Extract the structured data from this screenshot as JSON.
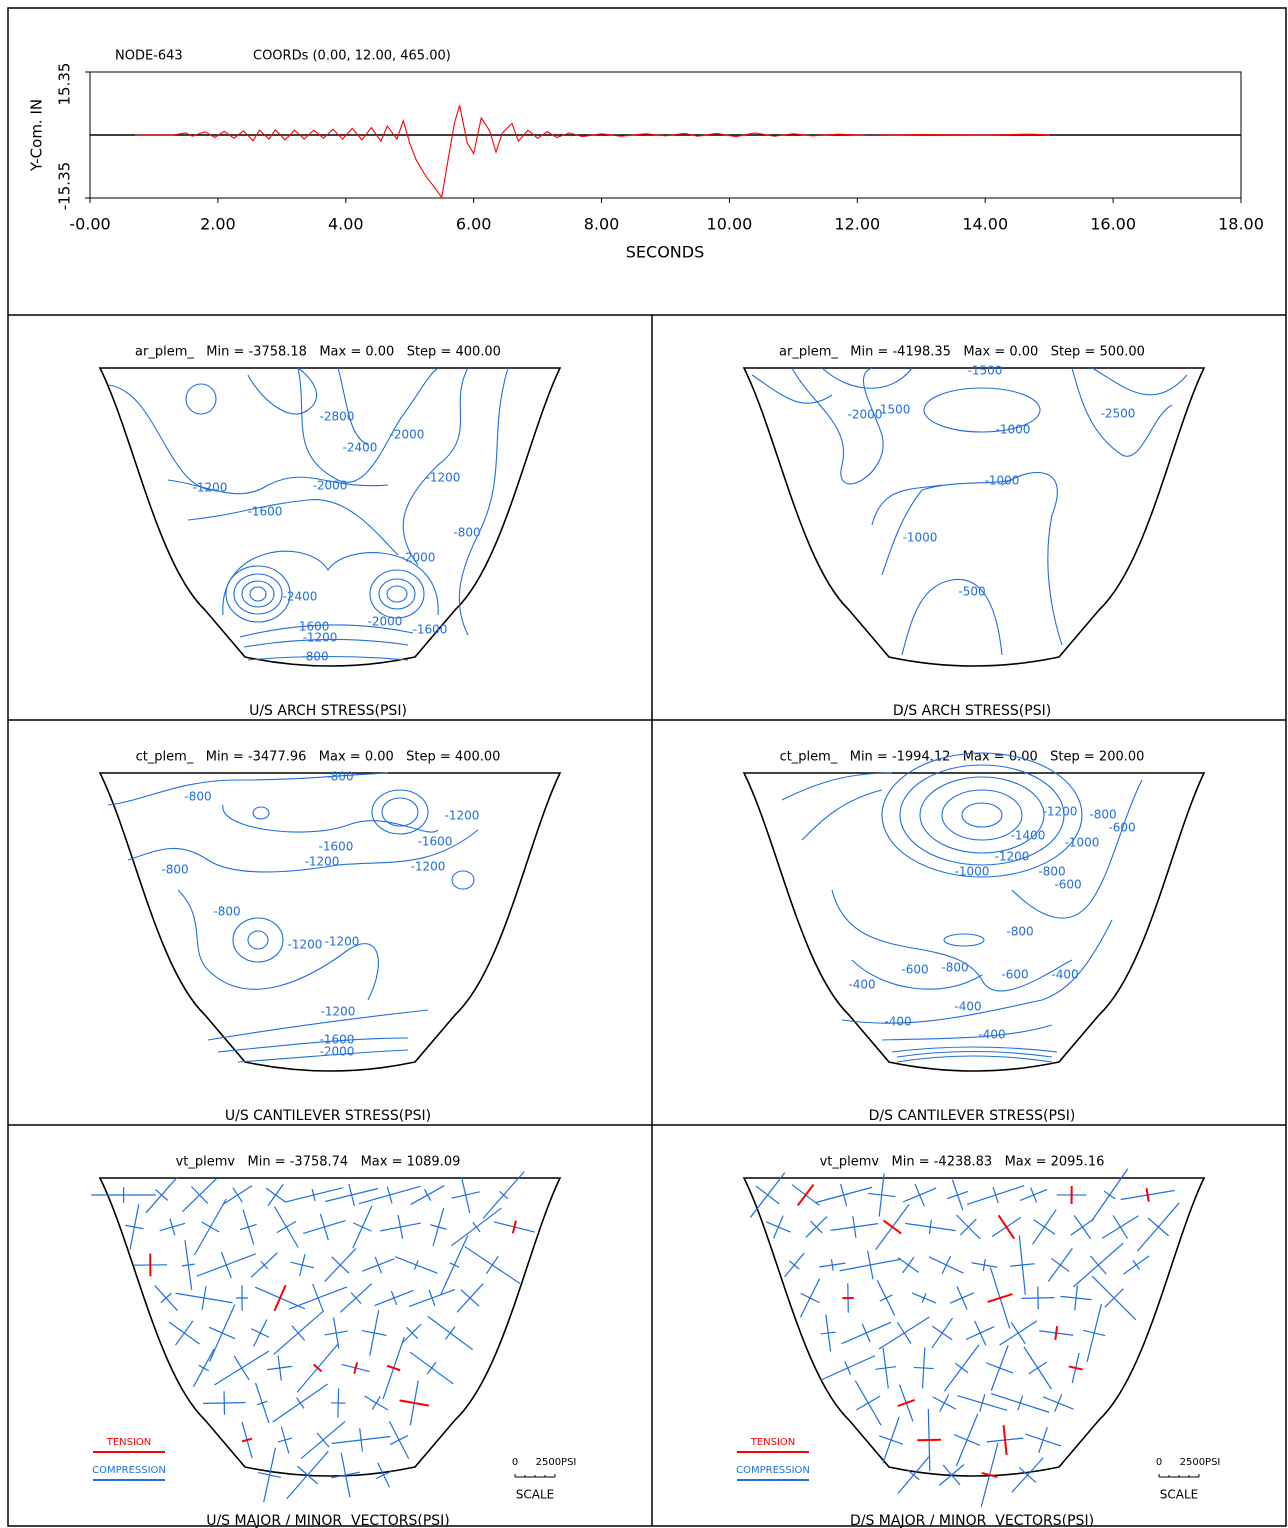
{
  "chart_data": {
    "type": "line",
    "title": "NODE-643",
    "subtitle": "COORDs (0.00, 12.00, 465.00)",
    "x_label": "SECONDS",
    "y_label": "Y-Com. IN",
    "x": [
      0.7,
      1.3,
      1.5,
      1.6,
      1.8,
      1.95,
      2.1,
      2.25,
      2.4,
      2.55,
      2.65,
      2.8,
      2.9,
      3.05,
      3.2,
      3.35,
      3.5,
      3.65,
      3.8,
      3.95,
      4.1,
      4.25,
      4.4,
      4.55,
      4.65,
      4.8,
      4.9,
      5.0,
      5.1,
      5.25,
      5.4,
      5.5,
      5.6,
      5.7,
      5.78,
      5.9,
      6.0,
      6.12,
      6.25,
      6.35,
      6.45,
      6.6,
      6.7,
      6.85,
      7.0,
      7.15,
      7.3,
      7.5,
      7.7,
      8.0,
      8.3,
      8.7,
      9.0,
      9.3,
      9.5,
      9.8,
      10.1,
      10.4,
      10.7,
      11.0,
      11.3,
      11.7,
      12.2,
      13.0,
      14.0,
      14.7,
      14.9,
      15.0
    ],
    "series": [
      {
        "name": "Y-Com.",
        "color": "#ff0000",
        "values": [
          0,
          0,
          0.5,
          -0.3,
          0.8,
          -0.6,
          0.9,
          -0.8,
          1.0,
          -1.4,
          1.2,
          -1.0,
          1.3,
          -1.2,
          1.2,
          -1.0,
          1.2,
          -0.8,
          1.4,
          -1.0,
          1.6,
          -1.2,
          1.8,
          -1.5,
          2.2,
          -1.0,
          3.5,
          -2.0,
          -6,
          -10,
          -13,
          -15.2,
          -6,
          3,
          7.2,
          -2,
          -4.5,
          4.2,
          1,
          -4.2,
          0.5,
          2.8,
          -1.5,
          1.2,
          -0.8,
          0.8,
          -0.6,
          0.5,
          -0.4,
          0.3,
          -0.3,
          0.3,
          -0.2,
          0.4,
          -0.3,
          0.4,
          -0.4,
          0.5,
          -0.3,
          0.3,
          -0.2,
          0.2,
          -0.1,
          0.1,
          0,
          0.2,
          0.1,
          0
        ]
      }
    ],
    "xlim": [
      0,
      18
    ],
    "ylim": [
      -15.35,
      15.35
    ],
    "xticks": [
      {
        "value": 0,
        "label": "-0.00"
      },
      {
        "value": 2,
        "label": "2.00"
      },
      {
        "value": 4,
        "label": "4.00"
      },
      {
        "value": 6,
        "label": "6.00"
      },
      {
        "value": 8,
        "label": "8.00"
      },
      {
        "value": 10,
        "label": "10.00"
      },
      {
        "value": 12,
        "label": "12.00"
      },
      {
        "value": 14,
        "label": "14.00"
      },
      {
        "value": 16,
        "label": "16.00"
      },
      {
        "value": 18,
        "label": "18.00"
      }
    ],
    "yticks": [
      -15.35,
      15.35
    ]
  },
  "panels": [
    {
      "header": "ar_plem_   Min = -3758.18   Max = 0.00   Step = 400.00",
      "caption": "U/S ARCH STRESS(PSI)",
      "contour_labels": [
        "-2800",
        "-2400",
        "-2000",
        "-1200",
        "-2000",
        "-1200",
        "-1600",
        "-800",
        "-2000",
        "-2400",
        "-2000",
        "-1600",
        "-1600",
        "-1200",
        "-800"
      ]
    },
    {
      "header": "ar_plem_   Min = -4198.35   Max = 0.00   Step = 500.00",
      "caption": "D/S ARCH STRESS(PSI)",
      "contour_labels": [
        "-1500",
        "-2000",
        "-1500",
        "-2500",
        "-1000",
        "-1000",
        "-1000",
        "-500"
      ]
    },
    {
      "header": "ct_plem_   Min = -3477.96   Max = 0.00   Step = 400.00",
      "caption": "U/S CANTILEVER STRESS(PSI)",
      "contour_labels": [
        "-800",
        "-800",
        "-1200",
        "-1600",
        "-1600",
        "-1200",
        "-1200",
        "-800",
        "-800",
        "-1200",
        "-1200",
        "-1200",
        "-1600",
        "-2000"
      ]
    },
    {
      "header": "ct_plem_   Min = -1994.12   Max = 0.00   Step = 200.00",
      "caption": "D/S CANTILEVER STRESS(PSI)",
      "contour_labels": [
        "-1200",
        "-800",
        "-600",
        "-1400",
        "-1000",
        "-1200",
        "-1000",
        "-800",
        "-600",
        "-800",
        "-800",
        "-600",
        "-600",
        "-400",
        "-400",
        "-400",
        "-400",
        "-400"
      ]
    },
    {
      "header": "vt_plemv   Min = -3758.74   Max = 1089.09",
      "caption": "U/S MAJOR / MINOR  VECTORS(PSI)"
    },
    {
      "header": "vt_plemv   Min = -4238.83   Max = 2095.16",
      "caption": "D/S MAJOR / MINOR  VECTORS(PSI)"
    }
  ],
  "legend": {
    "tension": "TENSION",
    "compression": "COMPRESSION",
    "scale_zero": "0",
    "scale_value": "2500PSI",
    "scale_title": "SCALE"
  }
}
